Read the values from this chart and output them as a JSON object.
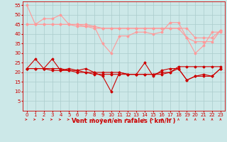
{
  "x": [
    0,
    1,
    2,
    3,
    4,
    5,
    6,
    7,
    8,
    9,
    10,
    11,
    12,
    13,
    14,
    15,
    16,
    17,
    18,
    19,
    20,
    21,
    22,
    23
  ],
  "series_pink_1": [
    55,
    45,
    48,
    48,
    50,
    45,
    45,
    45,
    44,
    35,
    30,
    39,
    39,
    41,
    41,
    40,
    41,
    46,
    46,
    38,
    30,
    34,
    41,
    41
  ],
  "series_pink_2": [
    45,
    45,
    45,
    45,
    45,
    45,
    44,
    44,
    43,
    43,
    43,
    43,
    43,
    43,
    43,
    43,
    43,
    43,
    43,
    38,
    36,
    36,
    36,
    42
  ],
  "series_pink_3": [
    45,
    45,
    45,
    45,
    45,
    45,
    45,
    44,
    44,
    43,
    43,
    43,
    43,
    43,
    43,
    43,
    43,
    43,
    43,
    43,
    38,
    38,
    38,
    42
  ],
  "series_red_1": [
    22,
    27,
    22,
    27,
    21,
    22,
    21,
    22,
    20,
    18,
    10,
    20,
    19,
    19,
    25,
    18,
    21,
    22,
    22,
    16,
    18,
    19,
    18,
    22
  ],
  "series_red_2": [
    22,
    22,
    22,
    21,
    21,
    21,
    20,
    20,
    20,
    20,
    20,
    20,
    19,
    19,
    19,
    19,
    20,
    20,
    23,
    23,
    23,
    23,
    23,
    23
  ],
  "series_red_3": [
    22,
    22,
    22,
    22,
    22,
    21,
    21,
    20,
    19,
    19,
    19,
    19,
    19,
    19,
    19,
    19,
    19,
    20,
    22,
    16,
    18,
    18,
    18,
    22
  ],
  "bg_color": "#cce8e8",
  "grid_color": "#aacccc",
  "pink_color": "#ff9999",
  "dark_red_color": "#cc0000",
  "xlabel": "Vent moyen/en rafales ( km/h )",
  "ylabel_ticks": [
    5,
    10,
    15,
    20,
    25,
    30,
    35,
    40,
    45,
    50,
    55
  ],
  "xlabel_fontsize": 6,
  "tick_fontsize": 5,
  "wind_dirs": [
    0,
    0,
    0,
    0,
    0,
    0,
    0,
    0,
    0,
    0,
    0,
    0,
    0,
    0,
    0,
    0,
    45,
    45,
    90,
    90,
    90,
    90,
    90,
    90
  ],
  "ylim": [
    0,
    57
  ],
  "xlim": [
    -0.5,
    23.5
  ]
}
